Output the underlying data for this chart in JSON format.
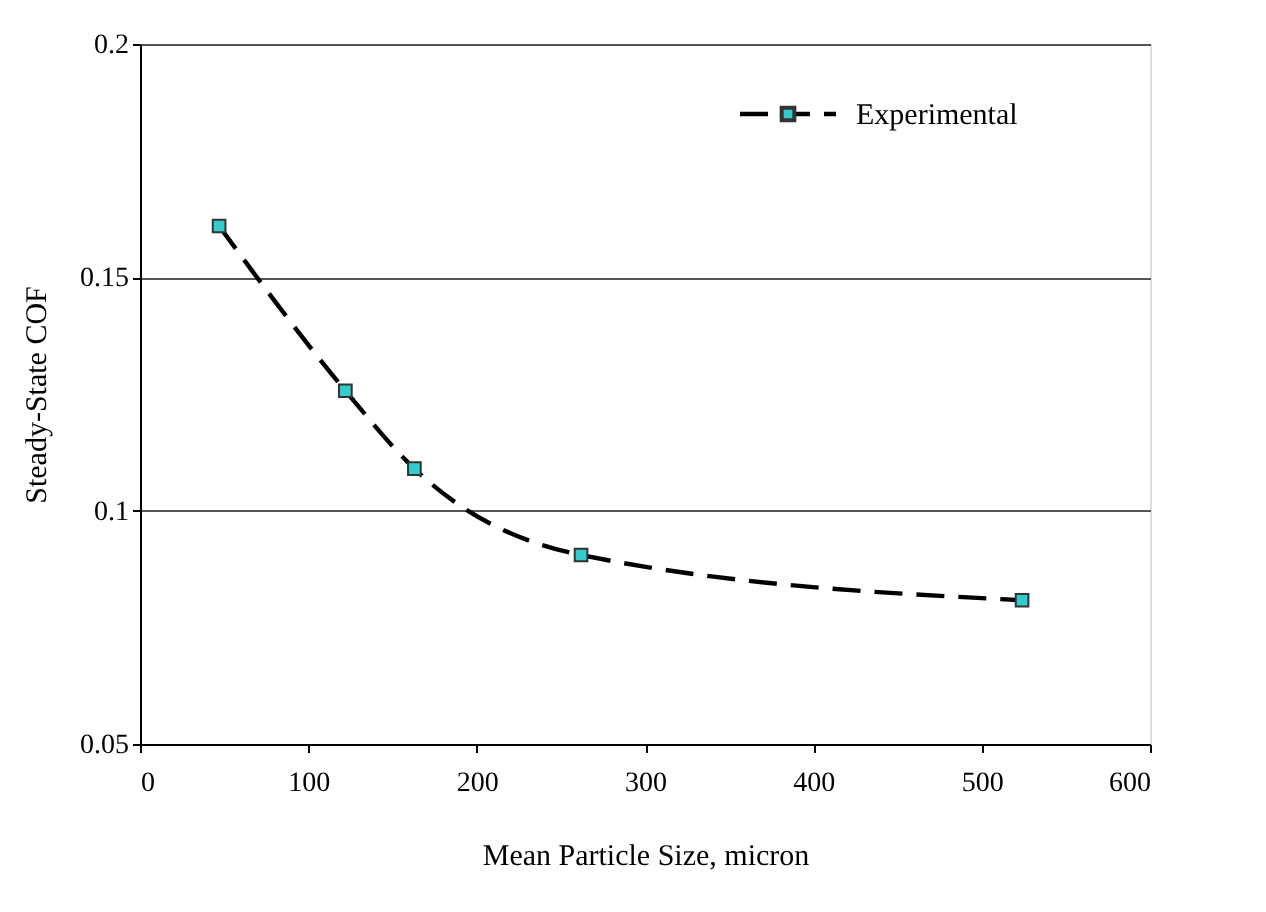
{
  "chart_data": {
    "type": "line",
    "xlabel": "Mean Particle Size, micron",
    "ylabel": "Steady-State COF",
    "x": [
      47,
      122,
      163,
      262,
      524
    ],
    "series": [
      {
        "name": "Experimental",
        "color": "#000000",
        "values": [
          0.161,
          0.1257,
          0.109,
          0.0905,
          0.0808
        ]
      }
    ],
    "xlim": [
      0,
      600
    ],
    "xticks": [
      0,
      100,
      200,
      300,
      400,
      500,
      600
    ],
    "ylim": [
      0.05,
      0.2
    ],
    "yticks": [
      0.05,
      0.1,
      0.15,
      0.2
    ],
    "grid": "y",
    "legend": "top right",
    "marker": "square",
    "line_style": "dashed"
  }
}
